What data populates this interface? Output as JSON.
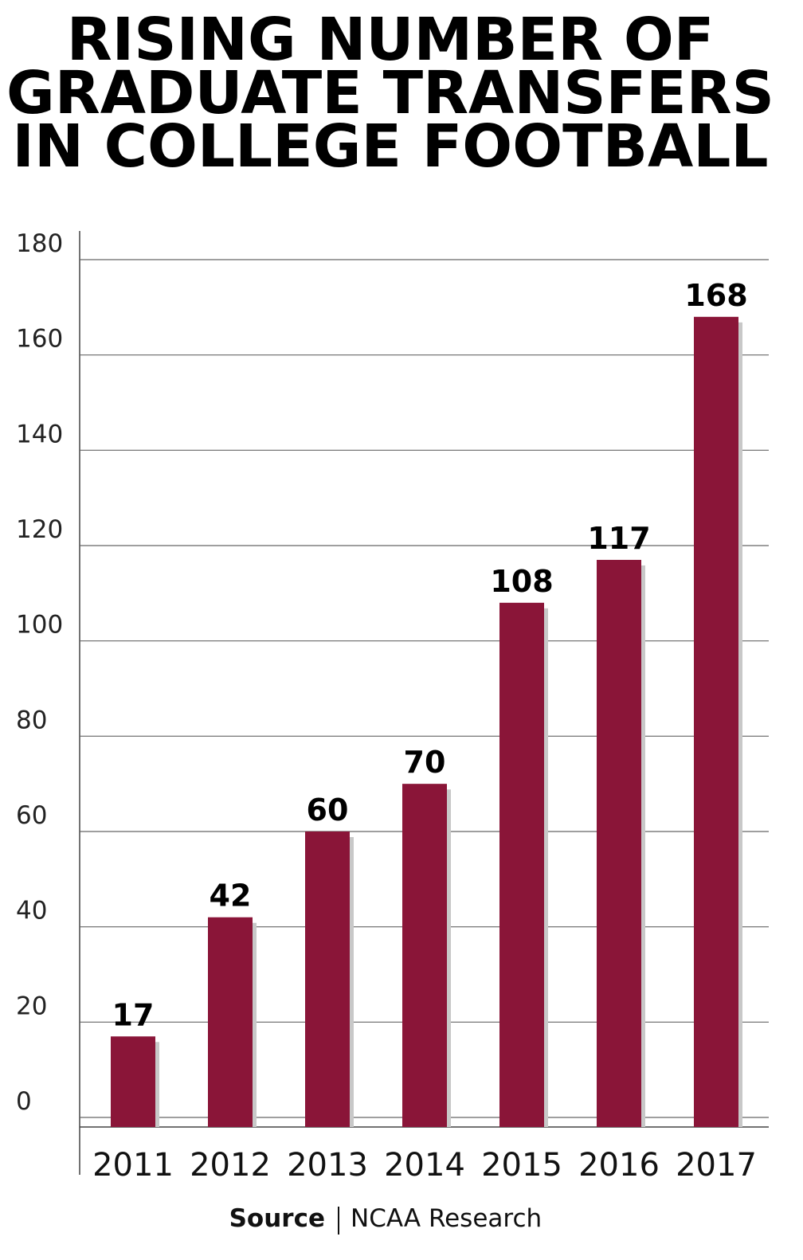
{
  "chart_data": {
    "type": "bar",
    "title": [
      "RISING NUMBER OF",
      "GRADUATE TRANSFERS",
      "IN COLLEGE FOOTBALL"
    ],
    "categories": [
      "2011",
      "2012",
      "2013",
      "2014",
      "2015",
      "2016",
      "2017"
    ],
    "values": [
      17,
      42,
      60,
      70,
      108,
      117,
      168
    ],
    "color": "#8a1538",
    "ylim": [
      0,
      180
    ],
    "yticks": [
      0,
      20,
      40,
      60,
      80,
      100,
      120,
      140,
      160,
      180
    ],
    "grid": true,
    "source_label": "Source",
    "source": "NCAA Research"
  }
}
